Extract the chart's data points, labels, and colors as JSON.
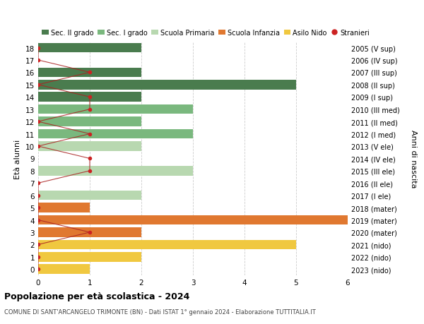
{
  "ages": [
    18,
    17,
    16,
    15,
    14,
    13,
    12,
    11,
    10,
    9,
    8,
    7,
    6,
    5,
    4,
    3,
    2,
    1,
    0
  ],
  "right_labels": [
    "2005 (V sup)",
    "2006 (IV sup)",
    "2007 (III sup)",
    "2008 (II sup)",
    "2009 (I sup)",
    "2010 (III med)",
    "2011 (II med)",
    "2012 (I med)",
    "2013 (V ele)",
    "2014 (IV ele)",
    "2015 (III ele)",
    "2016 (II ele)",
    "2017 (I ele)",
    "2018 (mater)",
    "2019 (mater)",
    "2020 (mater)",
    "2021 (nido)",
    "2022 (nido)",
    "2023 (nido)"
  ],
  "bar_values": [
    2,
    0,
    2,
    5,
    2,
    3,
    2,
    3,
    2,
    0,
    3,
    0,
    2,
    1,
    6,
    2,
    5,
    2,
    1
  ],
  "stranieri_x": [
    0,
    0,
    1,
    0,
    1,
    1,
    0,
    1,
    0,
    1,
    1,
    0,
    0,
    0,
    0,
    1,
    0,
    0,
    0
  ],
  "bar_colors": [
    "#4a7c4e",
    "#4a7c4e",
    "#4a7c4e",
    "#4a7c4e",
    "#4a7c4e",
    "#7ab87e",
    "#7ab87e",
    "#7ab87e",
    "#b8d8b0",
    "#b8d8b0",
    "#b8d8b0",
    "#b8d8b0",
    "#b8d8b0",
    "#e07830",
    "#e07830",
    "#e07830",
    "#f0c840",
    "#f0c840",
    "#f0c840"
  ],
  "legend_labels": [
    "Sec. II grado",
    "Sec. I grado",
    "Scuola Primaria",
    "Scuola Infanzia",
    "Asilo Nido",
    "Stranieri"
  ],
  "legend_colors": [
    "#4a7c4e",
    "#7ab87e",
    "#b8d8b0",
    "#e07830",
    "#f0c840",
    "#cc2222"
  ],
  "title": "Popolazione per età scolastica - 2024",
  "subtitle": "COMUNE DI SANT'ARCANGELO TRIMONTE (BN) - Dati ISTAT 1° gennaio 2024 - Elaborazione TUTTITALIA.IT",
  "ylabel": "Età alunni",
  "right_ylabel": "Anni di nascita",
  "xlim": [
    0,
    6
  ],
  "background_color": "#ffffff",
  "grid_color": "#cccccc",
  "stranieri_color": "#cc2222",
  "stranieri_line_color": "#aa2222"
}
